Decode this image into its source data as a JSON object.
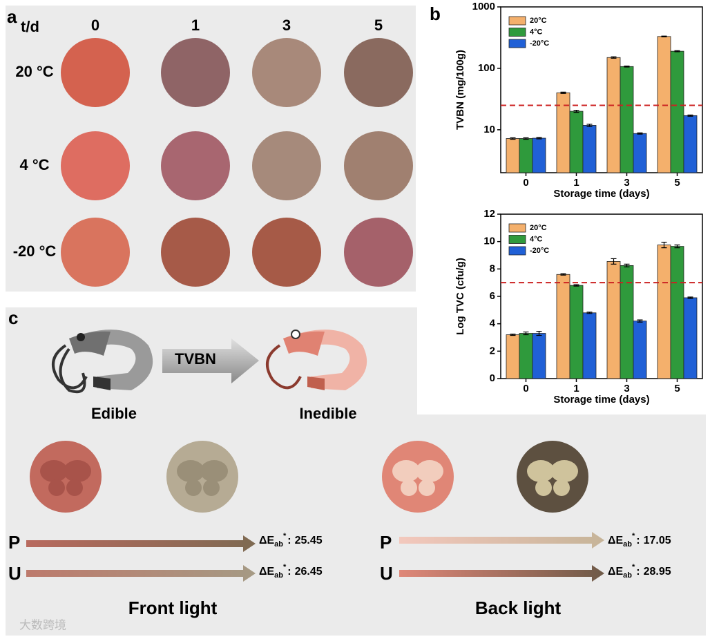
{
  "panel_labels": {
    "a": "a",
    "b": "b",
    "c": "c"
  },
  "panel_a": {
    "corner": "t/d",
    "columns": [
      "0",
      "1",
      "3",
      "5"
    ],
    "rows": [
      "20 °C",
      "4 °C",
      "-20 °C"
    ],
    "colors": [
      [
        "#d4624f",
        "#8f6466",
        "#a8897a",
        "#8a6a5f"
      ],
      [
        "#de6d61",
        "#a86670",
        "#a68a7b",
        "#a08070"
      ],
      [
        "#d9745e",
        "#a65a48",
        "#a65a47",
        "#a5616a"
      ]
    ]
  },
  "chart_data": [
    {
      "type": "bar",
      "log_scale": true,
      "xlabel": "Storage time (days)",
      "ylabel": "TVBN (mg/100g)",
      "categories": [
        "0",
        "1",
        "3",
        "5"
      ],
      "series": [
        {
          "name": "20°C",
          "color": "#f4b06c",
          "values": [
            7.2,
            40,
            150,
            330
          ],
          "errors": [
            0.2,
            1,
            4,
            5
          ]
        },
        {
          "name": "4°C",
          "color": "#2f9a3c",
          "values": [
            7.2,
            20,
            107,
            190
          ],
          "errors": [
            0.2,
            0.8,
            2,
            4
          ]
        },
        {
          "name": "-20°C",
          "color": "#2060d6",
          "values": [
            7.3,
            11.8,
            8.7,
            17
          ],
          "errors": [
            0.2,
            0.5,
            0.2,
            0.4
          ]
        }
      ],
      "threshold": 25,
      "ylim": [
        2,
        1000
      ],
      "yticks": [
        10,
        100,
        1000
      ],
      "legend": "upper-left"
    },
    {
      "type": "bar",
      "log_scale": false,
      "xlabel": "Storage time (days)",
      "ylabel": "Log TVC (cfu/g)",
      "categories": [
        "0",
        "1",
        "3",
        "5"
      ],
      "series": [
        {
          "name": "20°C",
          "color": "#f4b06c",
          "values": [
            3.2,
            7.6,
            8.55,
            9.75
          ],
          "errors": [
            0.05,
            0.05,
            0.2,
            0.2
          ]
        },
        {
          "name": "4°C",
          "color": "#2f9a3c",
          "values": [
            3.3,
            6.8,
            8.25,
            9.65
          ],
          "errors": [
            0.1,
            0.05,
            0.1,
            0.1
          ]
        },
        {
          "name": "-20°C",
          "color": "#2060d6",
          "values": [
            3.3,
            4.8,
            4.2,
            5.9
          ],
          "errors": [
            0.15,
            0.05,
            0.08,
            0.05
          ]
        }
      ],
      "threshold": 7,
      "ylim": [
        0,
        12
      ],
      "yticks": [
        0,
        2,
        4,
        6,
        8,
        10,
        12
      ],
      "legend": "upper-left"
    }
  ],
  "panel_c": {
    "arrow_text": "TVBN",
    "edible": "Edible",
    "inedible": "Inedible",
    "delta": {
      "main": "ΔE",
      "sub": "ab",
      "sup": "*",
      "separator": ":"
    },
    "front": {
      "title": "Front light",
      "rows": [
        {
          "label": "P",
          "value": "25.45"
        },
        {
          "label": "U",
          "value": "26.45"
        }
      ]
    },
    "back": {
      "title": "Back light",
      "rows": [
        {
          "label": "P",
          "value": "17.05"
        },
        {
          "label": "U",
          "value": "28.95"
        }
      ]
    },
    "watermark": "大数跨境"
  }
}
